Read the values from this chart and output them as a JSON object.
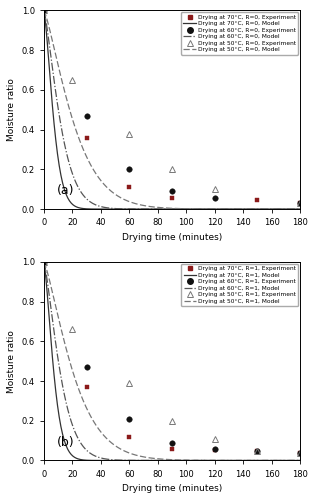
{
  "panel_a": {
    "label": "(a)",
    "exp_70": {
      "x": [
        0,
        30,
        60,
        90,
        150,
        180
      ],
      "y": [
        1.0,
        0.36,
        0.11,
        0.055,
        0.045,
        0.03
      ]
    },
    "exp_60": {
      "x": [
        0,
        30,
        60,
        90,
        120,
        180
      ],
      "y": [
        1.0,
        0.47,
        0.2,
        0.09,
        0.055,
        0.03
      ]
    },
    "exp_50": {
      "x": [
        0,
        20,
        60,
        90,
        120,
        180
      ],
      "y": [
        1.0,
        0.65,
        0.38,
        0.2,
        0.1,
        0.03
      ]
    },
    "k70": 0.048,
    "k60": 0.03,
    "k50": 0.016,
    "n70": 1.45,
    "n60": 1.35,
    "n50": 1.3
  },
  "panel_b": {
    "label": "(b)",
    "exp_70": {
      "x": [
        0,
        30,
        60,
        90,
        120,
        150,
        180
      ],
      "y": [
        1.0,
        0.37,
        0.12,
        0.06,
        0.055,
        0.05,
        0.04
      ]
    },
    "exp_60": {
      "x": [
        0,
        30,
        60,
        90,
        120,
        150,
        180
      ],
      "y": [
        1.0,
        0.47,
        0.21,
        0.09,
        0.06,
        0.05,
        0.04
      ]
    },
    "exp_50": {
      "x": [
        0,
        20,
        60,
        90,
        120,
        150,
        180
      ],
      "y": [
        1.0,
        0.66,
        0.39,
        0.2,
        0.11,
        0.05,
        0.04
      ]
    },
    "k70": 0.048,
    "k60": 0.03,
    "k50": 0.016,
    "n70": 1.45,
    "n60": 1.35,
    "n50": 1.3
  },
  "colors": {
    "c70": "#8B1A1A",
    "c60": "#111111",
    "c50": "#777777"
  },
  "line_color_70": "#333333",
  "line_color_60": "#555555",
  "line_color_50": "#777777",
  "xlim": [
    0,
    180
  ],
  "ylim": [
    0.0,
    1.0
  ],
  "xlabel": "Drying time (minutes)",
  "ylabel": "Moisture ratio",
  "xticks": [
    0,
    20,
    40,
    60,
    80,
    100,
    120,
    140,
    160,
    180
  ],
  "yticks": [
    0.0,
    0.2,
    0.4,
    0.6,
    0.8,
    1.0
  ],
  "legend_a": [
    "Drying at 70°C, R=0, Experiment",
    "Drying at 70°C, R=0, Model",
    "Drying at 60°C, R=0, Experiment",
    "Drying at 60°C, R=0, Model",
    "Drying at 50°C, R=0, Experiment",
    "Drying at 50°C, R=0, Model"
  ],
  "legend_b": [
    "Drying at 70°C, R=1, Experiment",
    "Drying at 70°C, R=1, Model",
    "Drying at 60°C, R=1, Experiment",
    "Drying at 60°C, R=1, Model",
    "Drying at 50°C, R=1, Experiment",
    "Drying at 50°C, R=1, Model"
  ]
}
